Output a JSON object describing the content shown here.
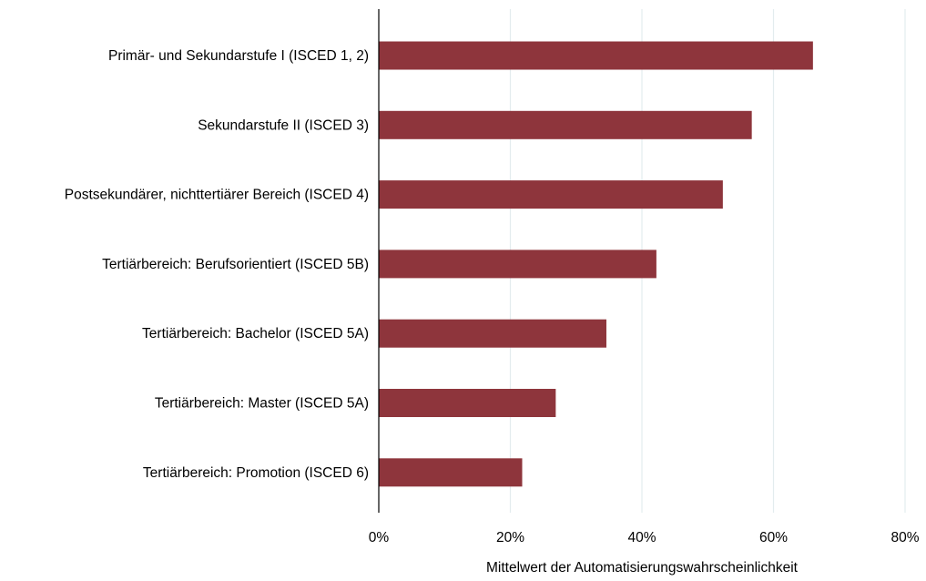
{
  "chart_data": {
    "type": "bar",
    "orientation": "horizontal",
    "title": "",
    "xlabel": "Mittelwert der Automatisierungswahrscheinlichkeit",
    "ylabel": "",
    "xlim": [
      0,
      80
    ],
    "x_ticks": [
      0,
      20,
      40,
      60,
      80
    ],
    "x_tick_labels": [
      "0%",
      "20%",
      "40%",
      "60%",
      "80%"
    ],
    "grid": "vertical",
    "categories": [
      "Primär- und Sekundarstufe I (ISCED 1, 2)",
      "Sekundarstufe II (ISCED 3)",
      "Postsekundärer, nichttertiärer Bereich (ISCED 4)",
      "Tertiärbereich: Berufsorientiert (ISCED 5B)",
      "Tertiärbereich: Bachelor (ISCED 5A)",
      "Tertiärbereich: Master (ISCED 5A)",
      "Tertiärbereich: Promotion (ISCED 6)"
    ],
    "values": [
      66.0,
      56.7,
      52.3,
      42.2,
      34.6,
      26.9,
      21.8
    ],
    "unit": "%",
    "colors": {
      "bar": "#8e353c",
      "grid": "#e3ecee",
      "axis": "#000000"
    }
  }
}
